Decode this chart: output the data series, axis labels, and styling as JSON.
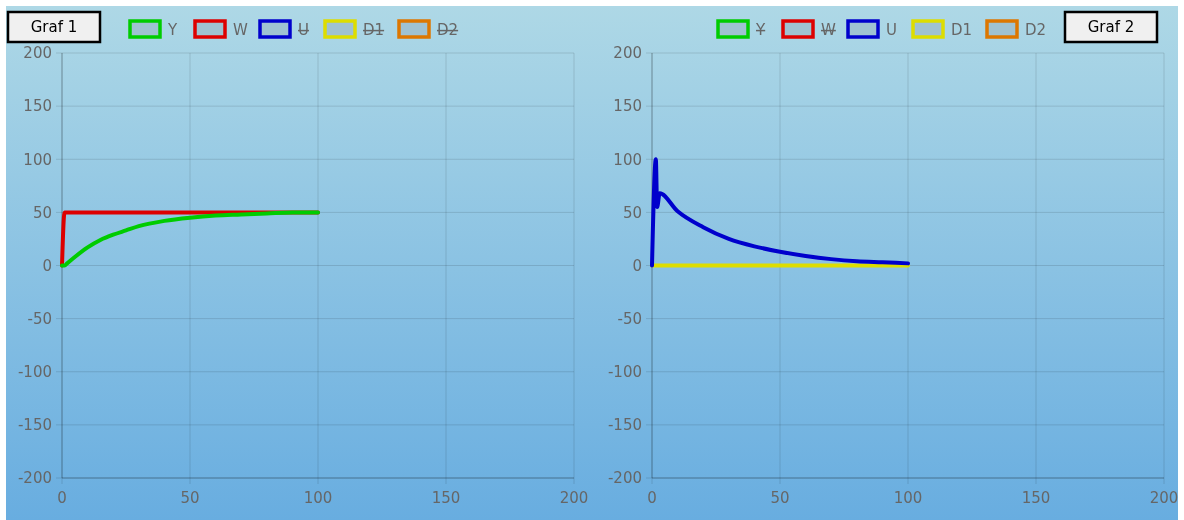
{
  "chart_data": [
    {
      "type": "line",
      "title": "Graf 1",
      "x": [
        0,
        1,
        2,
        5,
        10,
        15,
        20,
        25,
        30,
        40,
        50,
        60,
        70,
        80,
        90,
        100
      ],
      "xlim": [
        0,
        200
      ],
      "xticks": [
        0,
        50,
        100,
        150,
        200
      ],
      "ylim": [
        -200,
        200
      ],
      "yticks": [
        -200,
        -150,
        -100,
        -50,
        0,
        50,
        100,
        150,
        200
      ],
      "grid": true,
      "legend": "top",
      "marker": "none",
      "series": [
        {
          "name": "Y",
          "color": "#00cc00",
          "values": [
            0,
            0,
            2,
            8,
            17,
            24,
            29,
            33,
            37,
            42,
            45,
            47,
            48,
            49,
            50,
            50
          ]
        },
        {
          "name": "W",
          "color": "#dd0000",
          "x": [
            0,
            1,
            100
          ],
          "values": [
            0,
            50,
            50
          ]
        },
        {
          "name": "U",
          "color": "#0000cc",
          "line_style": "none",
          "values": [
            null,
            null,
            null,
            null,
            null,
            null,
            null,
            null,
            null,
            null,
            null,
            null,
            null,
            null,
            null,
            null
          ]
        },
        {
          "name": "D1",
          "color": "#dddd00",
          "line_style": "none",
          "values": [
            null,
            null,
            null,
            null,
            null,
            null,
            null,
            null,
            null,
            null,
            null,
            null,
            null,
            null,
            null,
            null
          ]
        },
        {
          "name": "D2",
          "color": "#dd7700",
          "line_style": "none",
          "values": [
            null,
            null,
            null,
            null,
            null,
            null,
            null,
            null,
            null,
            null,
            null,
            null,
            null,
            null,
            null,
            null
          ]
        }
      ]
    },
    {
      "type": "line",
      "title": "Graf 2",
      "x": [
        0,
        1.5,
        2,
        3,
        10,
        20,
        30,
        40,
        50,
        60,
        70,
        80,
        90,
        100
      ],
      "xlim": [
        0,
        200
      ],
      "xticks": [
        0,
        50,
        100,
        150,
        200
      ],
      "ylim": [
        -200,
        200
      ],
      "yticks": [
        -200,
        -150,
        -100,
        -50,
        0,
        50,
        100,
        150,
        200
      ],
      "grid": true,
      "legend": "top",
      "marker": "none",
      "series": [
        {
          "name": "Y",
          "color": "#00cc00",
          "line_style": "none",
          "values": [
            null,
            null,
            null,
            null,
            null,
            null,
            null,
            null,
            null,
            null,
            null,
            null,
            null,
            null
          ]
        },
        {
          "name": "W",
          "color": "#dd0000",
          "line_style": "none",
          "values": [
            null,
            null,
            null,
            null,
            null,
            null,
            null,
            null,
            null,
            null,
            null,
            null,
            null,
            null
          ]
        },
        {
          "name": "U",
          "color": "#0000cc",
          "values": [
            0,
            100,
            55,
            68,
            51,
            36,
            25,
            18,
            13,
            9,
            6,
            4,
            3,
            2
          ]
        },
        {
          "name": "D1",
          "color": "#dddd00",
          "x": [
            0,
            100
          ],
          "values": [
            0,
            0
          ]
        },
        {
          "name": "D2",
          "color": "#dd7700",
          "values": [
            null,
            null,
            null,
            null,
            null,
            null,
            null,
            null,
            null,
            null,
            null,
            null,
            null,
            null
          ]
        }
      ]
    }
  ]
}
